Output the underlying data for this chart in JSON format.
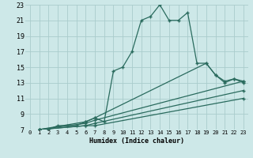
{
  "xlabel": "Humidex (Indice chaleur)",
  "ylabel": "",
  "background_color": "#cde8e8",
  "grid_color": "#aacccc",
  "line_color": "#2a6b5e",
  "xlim": [
    -0.5,
    23.5
  ],
  "ylim": [
    7,
    23
  ],
  "xticks": [
    0,
    1,
    2,
    3,
    4,
    5,
    6,
    7,
    8,
    9,
    10,
    11,
    12,
    13,
    14,
    15,
    16,
    17,
    18,
    19,
    20,
    21,
    22,
    23
  ],
  "yticks": [
    7,
    9,
    11,
    13,
    15,
    17,
    19,
    21,
    23
  ],
  "lines": [
    {
      "x": [
        1,
        2,
        3,
        4,
        5,
        6,
        7,
        8,
        9,
        10,
        11,
        12,
        13,
        14,
        15,
        16,
        17,
        18,
        19,
        20,
        21,
        22,
        23
      ],
      "y": [
        7,
        7,
        7.5,
        7.5,
        7.5,
        8,
        8.5,
        8.0,
        14.5,
        15,
        17,
        21,
        21.5,
        23,
        21,
        21,
        22,
        15.5,
        15.5,
        14,
        13,
        13.5,
        13
      ]
    },
    {
      "x": [
        1,
        6,
        7,
        19,
        20,
        21,
        22,
        23
      ],
      "y": [
        7,
        8,
        8.5,
        15.5,
        14.0,
        13.2,
        13.5,
        13.2
      ]
    },
    {
      "x": [
        1,
        6,
        7,
        23
      ],
      "y": [
        7,
        7.8,
        8.2,
        13.2
      ]
    },
    {
      "x": [
        1,
        6,
        7,
        23
      ],
      "y": [
        7,
        7.5,
        7.8,
        12.0
      ]
    },
    {
      "x": [
        1,
        6,
        7,
        23
      ],
      "y": [
        7,
        7.5,
        7.5,
        11.0
      ]
    }
  ]
}
